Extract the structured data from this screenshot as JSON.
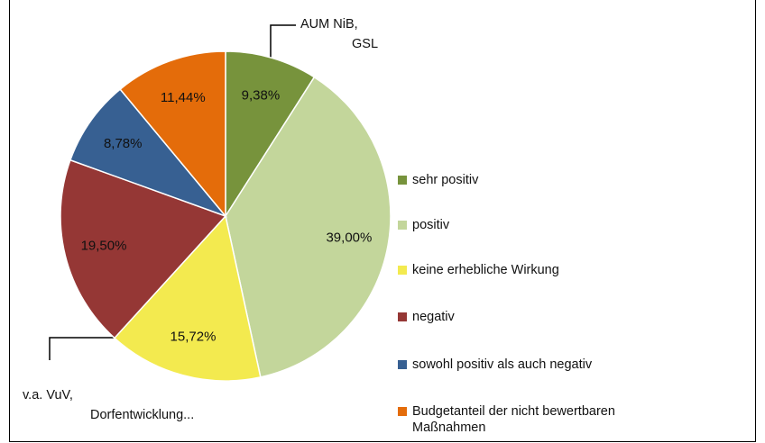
{
  "chart_data": {
    "type": "pie",
    "categories": [
      "sehr positiv",
      "positiv",
      "keine erhebliche Wirkung",
      "negativ",
      "sowohl positiv als auch negativ",
      " Budgetanteil der nicht bewertbaren Maßnahmen"
    ],
    "values": [
      9.38,
      39.0,
      15.72,
      19.5,
      8.78,
      11.44
    ],
    "value_labels": [
      "9,38%",
      "39,00%",
      "15,72%",
      "19,50%",
      "8,78%",
      "11,44%"
    ],
    "colors": [
      "#77933c",
      "#c3d69b",
      "#f3ea4f",
      "#953735",
      "#376092",
      "#e46c0a"
    ],
    "legend": "right",
    "annotations": [
      {
        "lines": [
          "AUM NiB,",
          "GSL"
        ]
      },
      {
        "lines": [
          "v.a. VuV,",
          "Dorfentwicklung..."
        ]
      }
    ]
  }
}
